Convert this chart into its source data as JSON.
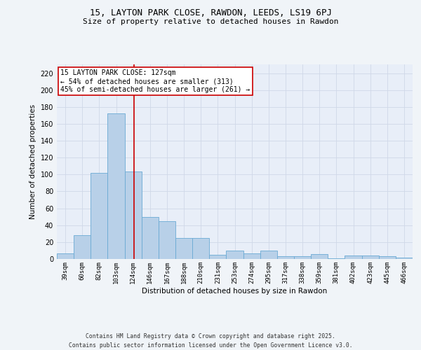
{
  "title1": "15, LAYTON PARK CLOSE, RAWDON, LEEDS, LS19 6PJ",
  "title2": "Size of property relative to detached houses in Rawdon",
  "xlabel": "Distribution of detached houses by size in Rawdon",
  "ylabel": "Number of detached properties",
  "bins": [
    "39sqm",
    "60sqm",
    "82sqm",
    "103sqm",
    "124sqm",
    "146sqm",
    "167sqm",
    "188sqm",
    "210sqm",
    "231sqm",
    "253sqm",
    "274sqm",
    "295sqm",
    "317sqm",
    "338sqm",
    "359sqm",
    "381sqm",
    "402sqm",
    "423sqm",
    "445sqm",
    "466sqm"
  ],
  "bar_values": [
    7,
    28,
    102,
    172,
    104,
    50,
    45,
    25,
    25,
    5,
    10,
    7,
    10,
    3,
    3,
    6,
    1,
    4,
    4,
    3,
    2
  ],
  "bar_color": "#b8d0e8",
  "bar_edge_color": "#6aaad4",
  "annotation_title": "15 LAYTON PARK CLOSE: 127sqm",
  "annotation_line1": "← 54% of detached houses are smaller (313)",
  "annotation_line2": "45% of semi-detached houses are larger (261) →",
  "vline_color": "#cc0000",
  "annotation_box_color": "#ffffff",
  "annotation_box_edge": "#cc0000",
  "grid_color": "#d0d8e8",
  "background_color": "#e8eef8",
  "fig_background": "#f0f4f8",
  "footer": "Contains HM Land Registry data © Crown copyright and database right 2025.\nContains public sector information licensed under the Open Government Licence v3.0.",
  "ylim": [
    0,
    230
  ],
  "yticks": [
    0,
    20,
    40,
    60,
    80,
    100,
    120,
    140,
    160,
    180,
    200,
    220
  ],
  "vline_x": 4.06
}
